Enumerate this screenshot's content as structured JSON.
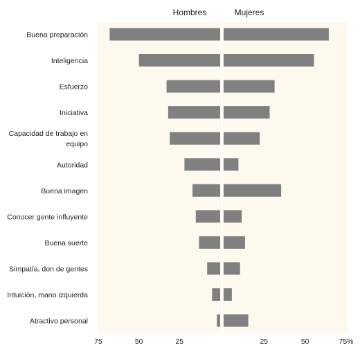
{
  "chart_data": {
    "type": "bar",
    "orientation": "horizontal-diverging",
    "categories": [
      [
        "Buena preparación"
      ],
      [
        "Inteligencia"
      ],
      [
        "Esfuerzo"
      ],
      [
        "Iniciativa"
      ],
      [
        "Capacidad de trabajo en",
        "equipo"
      ],
      [
        "Autoridad"
      ],
      [
        "Buena imagen"
      ],
      [
        "Conocer gente influyente"
      ],
      [
        "Buena suerte"
      ],
      [
        "Simpatía, don de gentes"
      ],
      [
        "Intuición, mano izquierda"
      ],
      [
        "Atractivo personal"
      ]
    ],
    "series": [
      {
        "name": "Hombres",
        "values": [
          68,
          50,
          33,
          32,
          31,
          22,
          17,
          15,
          13,
          8,
          5,
          2
        ]
      },
      {
        "name": "Mujeres",
        "values": [
          64,
          55,
          31,
          28,
          22,
          9,
          35,
          11,
          13,
          10,
          5,
          15
        ]
      }
    ],
    "xaxis_left": {
      "ticks": [
        75,
        50,
        25
      ],
      "tick_labels": [
        "75",
        "50",
        "25"
      ]
    },
    "xaxis_right": {
      "ticks": [
        25,
        50,
        75
      ],
      "tick_labels": [
        "25",
        "50",
        "75%"
      ]
    },
    "xlim": [
      0,
      75
    ],
    "grid": false,
    "legend": "top-center",
    "colors": {
      "bar": "#808080",
      "plot_background": "#fdf9ee",
      "divider": "#ffffff",
      "panel_line": "#ebe7dc"
    }
  }
}
